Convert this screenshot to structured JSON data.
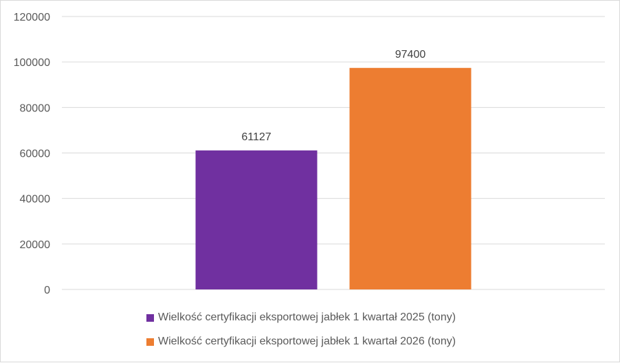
{
  "chart_data": {
    "type": "bar",
    "title": "",
    "xlabel": "",
    "ylabel": "",
    "ylim": [
      0,
      120000
    ],
    "yticks": [
      0,
      20000,
      40000,
      60000,
      80000,
      100000,
      120000
    ],
    "grid": true,
    "legend_position": "bottom",
    "series": [
      {
        "name": "Wielkość certyfikacji eksportowej jabłek 1 kwartał 2025 (tony)",
        "values": [
          61127
        ],
        "color": "#7030a0"
      },
      {
        "name": "Wielkość certyfikacji eksportowej jabłek 1 kwartał 2026 (tony)",
        "values": [
          97400
        ],
        "color": "#ed7d31"
      }
    ],
    "data_labels": [
      "61127",
      "97400"
    ]
  }
}
